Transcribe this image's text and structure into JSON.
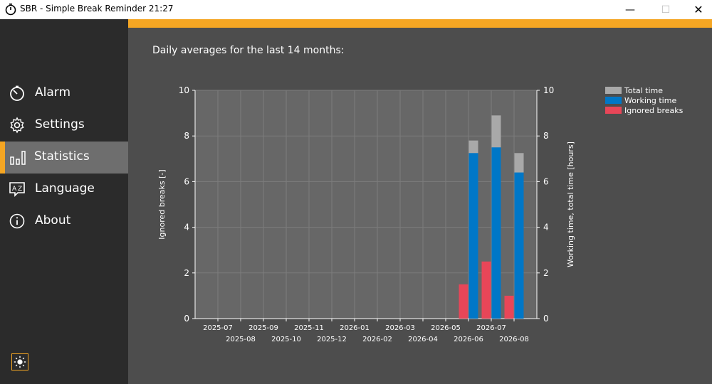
{
  "window": {
    "title": "SBR - Simple Break Reminder  21:27",
    "minimize": "—",
    "maximize": "☐",
    "close": "✕"
  },
  "sidebar": {
    "items": [
      {
        "label": "Alarm",
        "icon": "alarm-icon"
      },
      {
        "label": "Settings",
        "icon": "gear-icon"
      },
      {
        "label": "Statistics",
        "icon": "bar-chart-icon",
        "active": true
      },
      {
        "label": "Language",
        "icon": "language-icon"
      },
      {
        "label": "About",
        "icon": "info-icon"
      }
    ],
    "theme_toggle_icon": "sun-icon"
  },
  "main": {
    "heading": "Daily averages for the last 14 months:"
  },
  "colors": {
    "accent": "#f5a623",
    "total_time": "#a9a9a9",
    "working_time": "#0077c7",
    "ignored_breaks": "#e84658"
  },
  "chart_data": {
    "type": "bar",
    "categories": [
      "2025-07",
      "2025-08",
      "2025-09",
      "2025-10",
      "2025-11",
      "2025-12",
      "2026-01",
      "2026-02",
      "2026-03",
      "2026-04",
      "2026-05",
      "2026-06",
      "2026-07",
      "2026-08"
    ],
    "series": [
      {
        "name": "Total time",
        "axis": "right",
        "values": [
          0,
          0,
          0,
          0,
          0,
          0,
          0,
          0,
          0,
          0,
          0,
          7.8,
          8.9,
          7.25
        ]
      },
      {
        "name": "Working time",
        "axis": "right",
        "values": [
          0,
          0,
          0,
          0,
          0,
          0,
          0,
          0,
          0,
          0,
          0,
          7.25,
          7.5,
          6.4
        ]
      },
      {
        "name": "Ignored breaks",
        "axis": "left",
        "values": [
          0,
          0,
          0,
          0,
          0,
          0,
          0,
          0,
          0,
          0,
          0,
          1.5,
          2.5,
          1.0
        ]
      }
    ],
    "ylabel_left": "Ignored breaks [-]",
    "ylabel_right": "Working time, total time [hours]",
    "ylim": [
      0,
      10
    ],
    "y_ticks": [
      "0",
      "2",
      "4",
      "6",
      "8",
      "10"
    ],
    "grid": true,
    "legend_position": "top-right"
  }
}
